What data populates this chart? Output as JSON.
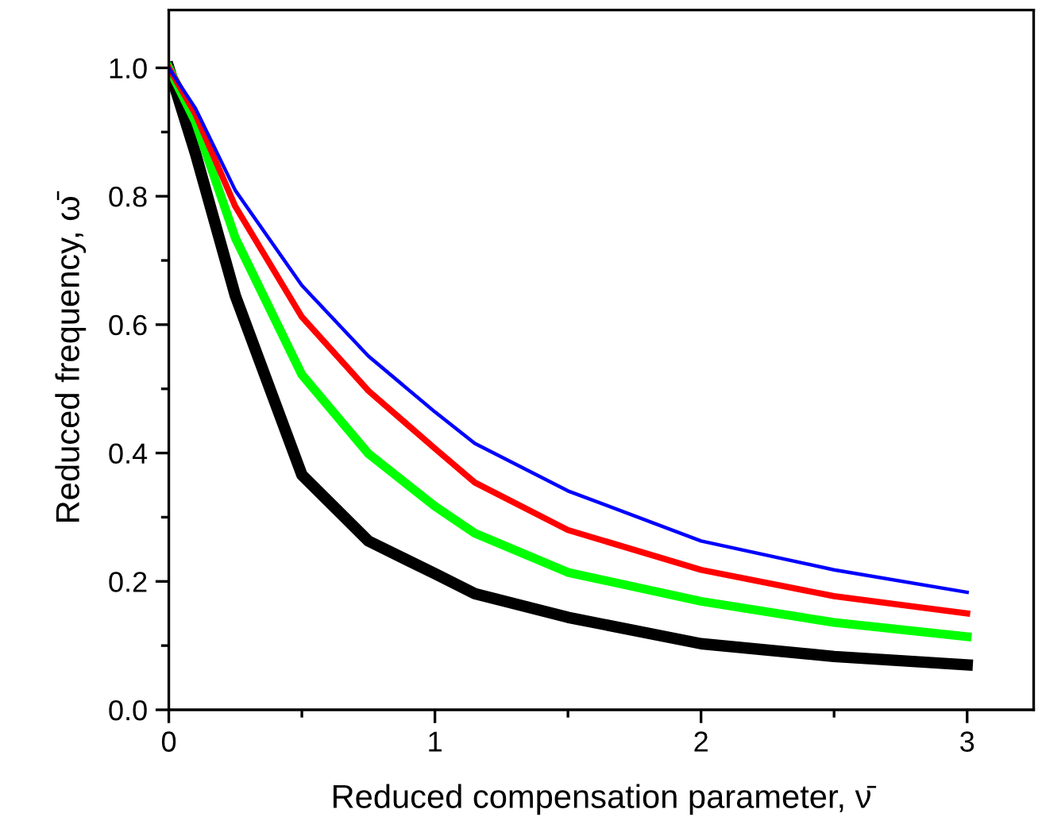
{
  "chart_data": {
    "type": "line",
    "xlabel": "Reduced compensation parameter, ν̄",
    "ylabel": "Reduced frequency, ω̄",
    "x": [
      0,
      0.1,
      0.25,
      0.5,
      0.75,
      1,
      1.15,
      1.5,
      2,
      2.5,
      3
    ],
    "series": [
      {
        "color": "#000000",
        "values": [
          1.0,
          0.867,
          0.645,
          0.366,
          0.263,
          0.212,
          0.181,
          0.144,
          0.103,
          0.083,
          0.07
        ]
      },
      {
        "color": "#00ff00",
        "values": [
          1.0,
          0.916,
          0.735,
          0.522,
          0.399,
          0.317,
          0.275,
          0.214,
          0.169,
          0.136,
          0.114
        ]
      },
      {
        "color": "#ff0000",
        "values": [
          1.0,
          0.928,
          0.784,
          0.612,
          0.497,
          0.407,
          0.354,
          0.28,
          0.218,
          0.177,
          0.15
        ]
      },
      {
        "color": "#0000ff",
        "values": [
          1.0,
          0.937,
          0.809,
          0.661,
          0.551,
          0.464,
          0.415,
          0.341,
          0.263,
          0.218,
          0.183
        ]
      }
    ],
    "xlim": [
      0,
      3.25
    ],
    "ylim": [
      0,
      1.09
    ],
    "xticks": [
      0,
      1,
      2,
      3
    ],
    "yticks": [
      {
        "value": 0,
        "label": "0.0"
      },
      0.2,
      0.4,
      0.6,
      0.8,
      {
        "value": 1,
        "label": "1.0"
      }
    ],
    "grid": false,
    "legend": false,
    "line_style": "solid",
    "marker": "none"
  }
}
